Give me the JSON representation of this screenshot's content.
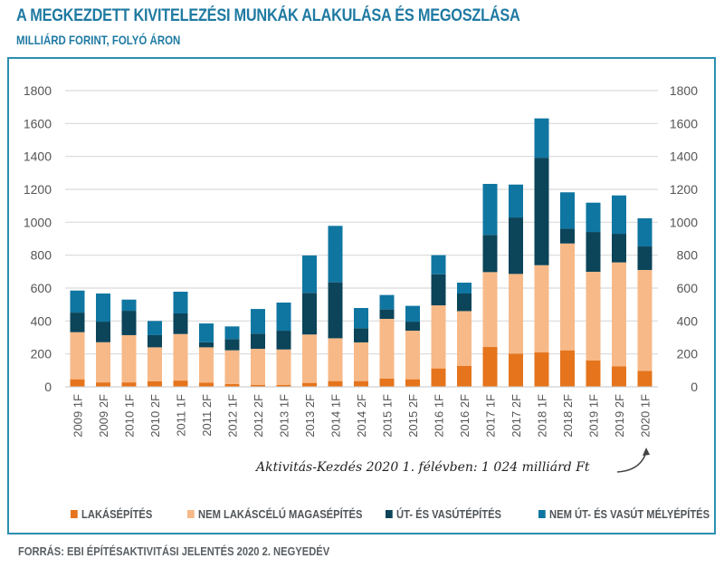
{
  "header": {
    "title": "A MEGKEZDETT KIVITELEZÉSI MUNKÁK ALAKULÁSA ÉS MEGOSZLÁSA",
    "subtitle": "MILLIÁRD FORINT, FOLYÓ ÁRON"
  },
  "annotation": "Aktivitás-Kezdés 2020  1. félévben: 1 024 milliárd Ft",
  "source": "FORRÁS: EBI ÉPÍTÉSAKTIVITÁSI JELENTÉS 2020 2. NEGYEDÉV",
  "chart_data": {
    "type": "bar",
    "stacked": true,
    "title": "A MEGKEZDETT KIVITELEZÉSI MUNKÁK ALAKULÁSA ÉS MEGOSZLÁSA",
    "subtitle": "MILLIÁRD FORINT, FOLYÓ ÁRON",
    "xlabel": "",
    "ylabel": "",
    "ylim": [
      0,
      1800
    ],
    "yticks": [
      0,
      200,
      400,
      600,
      800,
      1000,
      1200,
      1400,
      1600,
      1800
    ],
    "secondary_axis": true,
    "grid": true,
    "legend_position": "bottom",
    "categories": [
      "2009 1F",
      "2009 2F",
      "2010 1F",
      "2010 2F",
      "2011 1F",
      "2011 2F",
      "2012 1F",
      "2012 2F",
      "2013 1F",
      "2013 2F",
      "2014 1F",
      "2014 2F",
      "2015 1F",
      "2015 2F",
      "2016 1F",
      "2016 2F",
      "2017 1F",
      "2017 2F",
      "2018 1F",
      "2018 2F",
      "2019 1F",
      "2019 2F",
      "2020 1F"
    ],
    "series": [
      {
        "name": "LAKÁSÉPÍTÉS",
        "color": "#e5741c",
        "values": [
          46,
          27,
          27,
          33,
          38,
          25,
          17,
          11,
          11,
          24,
          35,
          35,
          51,
          46,
          112,
          128,
          242,
          202,
          209,
          222,
          161,
          125,
          97
        ]
      },
      {
        "name": "NEM LAKÁSCÉLÚ MAGASÉPÍTÉS",
        "color": "#f7b988",
        "values": [
          286,
          244,
          287,
          207,
          283,
          215,
          205,
          220,
          216,
          294,
          260,
          235,
          362,
          295,
          383,
          332,
          455,
          484,
          530,
          649,
          538,
          631,
          613
        ]
      },
      {
        "name": "ÚT- ÉS VASÚTÉPÍTÉS",
        "color": "#0c4459",
        "values": [
          119,
          125,
          148,
          74,
          125,
          31,
          68,
          92,
          114,
          253,
          340,
          86,
          57,
          55,
          189,
          107,
          226,
          343,
          653,
          90,
          242,
          174,
          143
        ]
      },
      {
        "name": "NEM ÚT- ÉS VASÚT MÉLYÉPÍTÉS",
        "color": "#0f76a1",
        "values": [
          134,
          171,
          68,
          86,
          132,
          114,
          77,
          150,
          171,
          227,
          343,
          123,
          88,
          96,
          116,
          66,
          310,
          200,
          239,
          221,
          178,
          233,
          171
        ]
      }
    ],
    "totals_annotation": {
      "category": "2020 1F",
      "value": 1024,
      "unit": "milliárd Ft"
    }
  },
  "colors": {
    "title": "#1f7aa2",
    "frame": "#2b8fb0",
    "grid": "#d9d9d9"
  }
}
